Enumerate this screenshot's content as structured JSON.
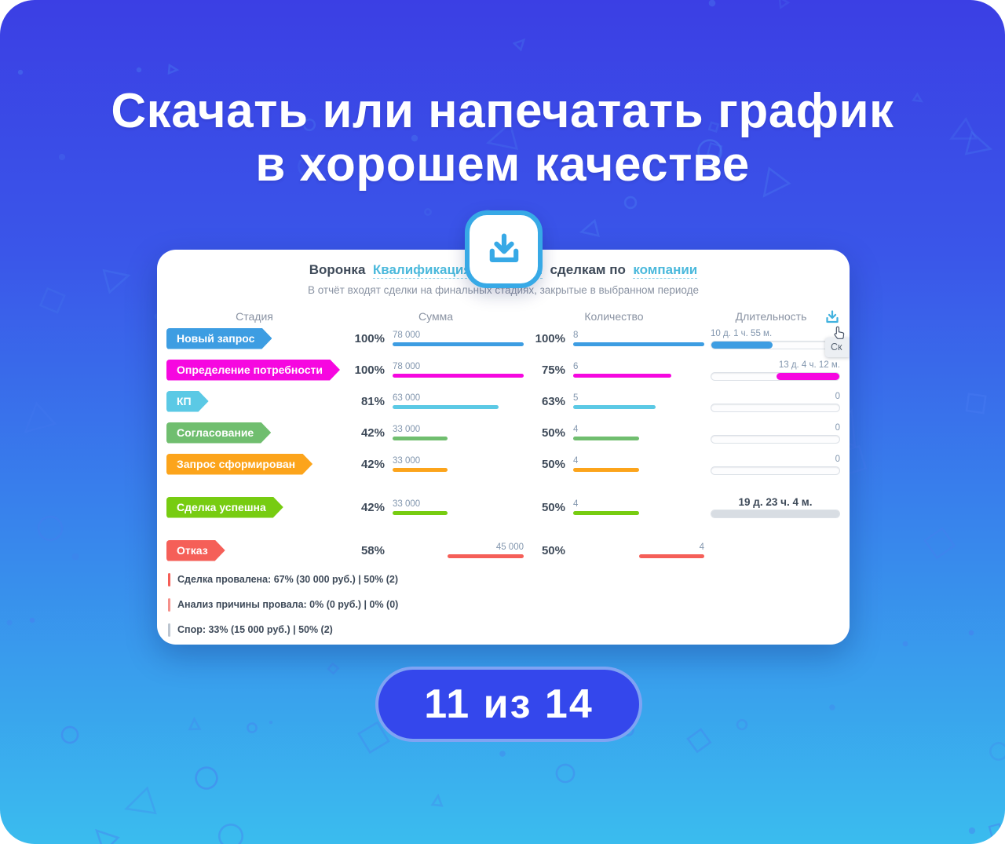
{
  "slide": {
    "title_line1": "Скачать или напечатать график",
    "title_line2": "в хорошем качестве",
    "pagination": "11 из 14"
  },
  "report": {
    "header": {
      "prefix": "Воронка",
      "funnel_link": "Квалификация",
      "hidden_fragment": "и",
      "middle": "сделкам по",
      "entity_link": "компании"
    },
    "subtitle": "В отчёт входят сделки на финальных стадиях, закрытые в выбранном периоде",
    "columns": {
      "stage": "Стадия",
      "sum": "Сумма",
      "count": "Количество",
      "duration": "Длительность"
    },
    "tooltip_text": "Ск",
    "rows": [
      {
        "stage": "Новый запрос",
        "color": "#3D9DE2",
        "sum_pct": "100%",
        "sum_val": "78 000",
        "sum_w": 100,
        "cnt_pct": "100%",
        "cnt_val": "8",
        "cnt_w": 100,
        "dur_text": "10 д. 1 ч. 55 м.",
        "dur": {
          "mode": "left",
          "fill": 48
        }
      },
      {
        "stage": "Определение потребности",
        "color": "#F607E0",
        "sum_pct": "100%",
        "sum_val": "78 000",
        "sum_w": 100,
        "cnt_pct": "75%",
        "cnt_val": "6",
        "cnt_w": 75,
        "dur_text": "13 д. 4 ч. 12 м.",
        "dur": {
          "mode": "right",
          "fill": 49
        }
      },
      {
        "stage": "КП",
        "color": "#5BC9E5",
        "sum_pct": "81%",
        "sum_val": "63 000",
        "sum_w": 81,
        "cnt_pct": "63%",
        "cnt_val": "5",
        "cnt_w": 63,
        "dur_text": "0",
        "dur": {
          "mode": "zero",
          "fill": 0
        }
      },
      {
        "stage": "Согласование",
        "color": "#70BE6F",
        "sum_pct": "42%",
        "sum_val": "33 000",
        "sum_w": 42,
        "cnt_pct": "50%",
        "cnt_val": "4",
        "cnt_w": 50,
        "dur_text": "0",
        "dur": {
          "mode": "zero",
          "fill": 0
        }
      },
      {
        "stage": "Запрос сформирован",
        "color": "#FCA41B",
        "sum_pct": "42%",
        "sum_val": "33 000",
        "sum_w": 42,
        "cnt_pct": "50%",
        "cnt_val": "4",
        "cnt_w": 50,
        "dur_text": "0",
        "dur": {
          "mode": "zero",
          "fill": 0
        }
      },
      {
        "stage": "Сделка успешна",
        "color": "#77CC11",
        "sum_pct": "42%",
        "sum_val": "33 000",
        "sum_w": 42,
        "cnt_pct": "50%",
        "cnt_val": "4",
        "cnt_w": 50,
        "dur_text": "19 д. 23 ч. 4 м.",
        "dur": {
          "mode": "full",
          "fill": 100
        },
        "gap": true
      },
      {
        "stage": "Отказ",
        "color": "#F55F58",
        "sum_pct": "58%",
        "sum_val": "45 000",
        "sum_w": 58,
        "cnt_pct": "50%",
        "cnt_val": "4",
        "cnt_w": 50,
        "dur_text": "",
        "dur": {
          "mode": "none",
          "fill": 0
        },
        "gap": true,
        "align": "right"
      }
    ],
    "breakdown": [
      {
        "text": "Сделка провалена: 67% (30 000 руб.) | 50% (2)",
        "tick": "#F55E57"
      },
      {
        "text": "Анализ причины провала: 0% (0 руб.) | 0% (0)",
        "tick": "#F5918B"
      },
      {
        "text": "Спор: 33% (15 000 руб.) | 50% (2)",
        "tick": "#BCC5D0"
      }
    ],
    "colors": {
      "duration_full_fill": "#D8DDE3",
      "accent": "#37A9E6",
      "link": "#4BB9DC"
    }
  }
}
